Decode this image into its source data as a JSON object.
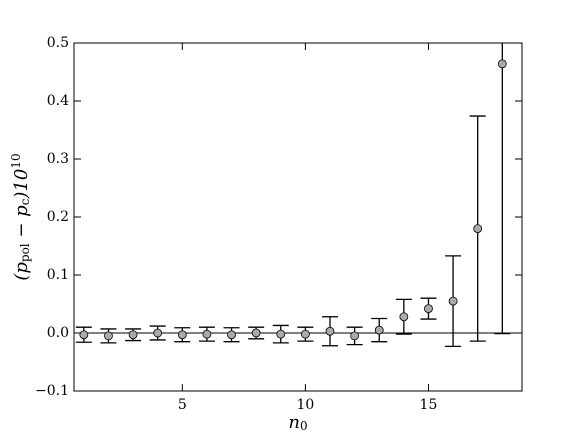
{
  "chart_data": {
    "type": "errorbar",
    "xlabel": [
      {
        "text": "n"
      },
      {
        "text": "0",
        "sub": true
      }
    ],
    "ylabel": [
      {
        "text": "(p"
      },
      {
        "text": "pol",
        "sub": true
      },
      {
        "text": " − p"
      },
      {
        "text": "c",
        "sub": true
      },
      {
        "text": ")10"
      },
      {
        "text": "10",
        "sup": true
      }
    ],
    "x": [
      1,
      2,
      3,
      4,
      5,
      6,
      7,
      8,
      9,
      10,
      11,
      12,
      13,
      14,
      15,
      16,
      17,
      18
    ],
    "values": [
      -0.003,
      -0.005,
      -0.003,
      0.0,
      -0.003,
      -0.002,
      -0.003,
      0.0,
      -0.002,
      -0.002,
      0.003,
      -0.005,
      0.005,
      0.028,
      0.042,
      0.055,
      0.18,
      0.464
    ],
    "errors": [
      0.013,
      0.012,
      0.01,
      0.012,
      0.012,
      0.012,
      0.012,
      0.01,
      0.015,
      0.012,
      0.025,
      0.015,
      0.02,
      0.03,
      0.018,
      0.078,
      0.194,
      0.465
    ],
    "color": "#aaaaaa",
    "xlim": [
      0.6,
      18.8
    ],
    "ylim": [
      -0.1,
      0.5
    ],
    "xticks": [
      5,
      10,
      15
    ],
    "yticks": [
      {
        "value": -0.1,
        "label": "−0.1"
      },
      {
        "value": 0,
        "label": "0.0"
      },
      0.1,
      0.2,
      0.3,
      0.4,
      0.5
    ],
    "zero_line": true
  }
}
